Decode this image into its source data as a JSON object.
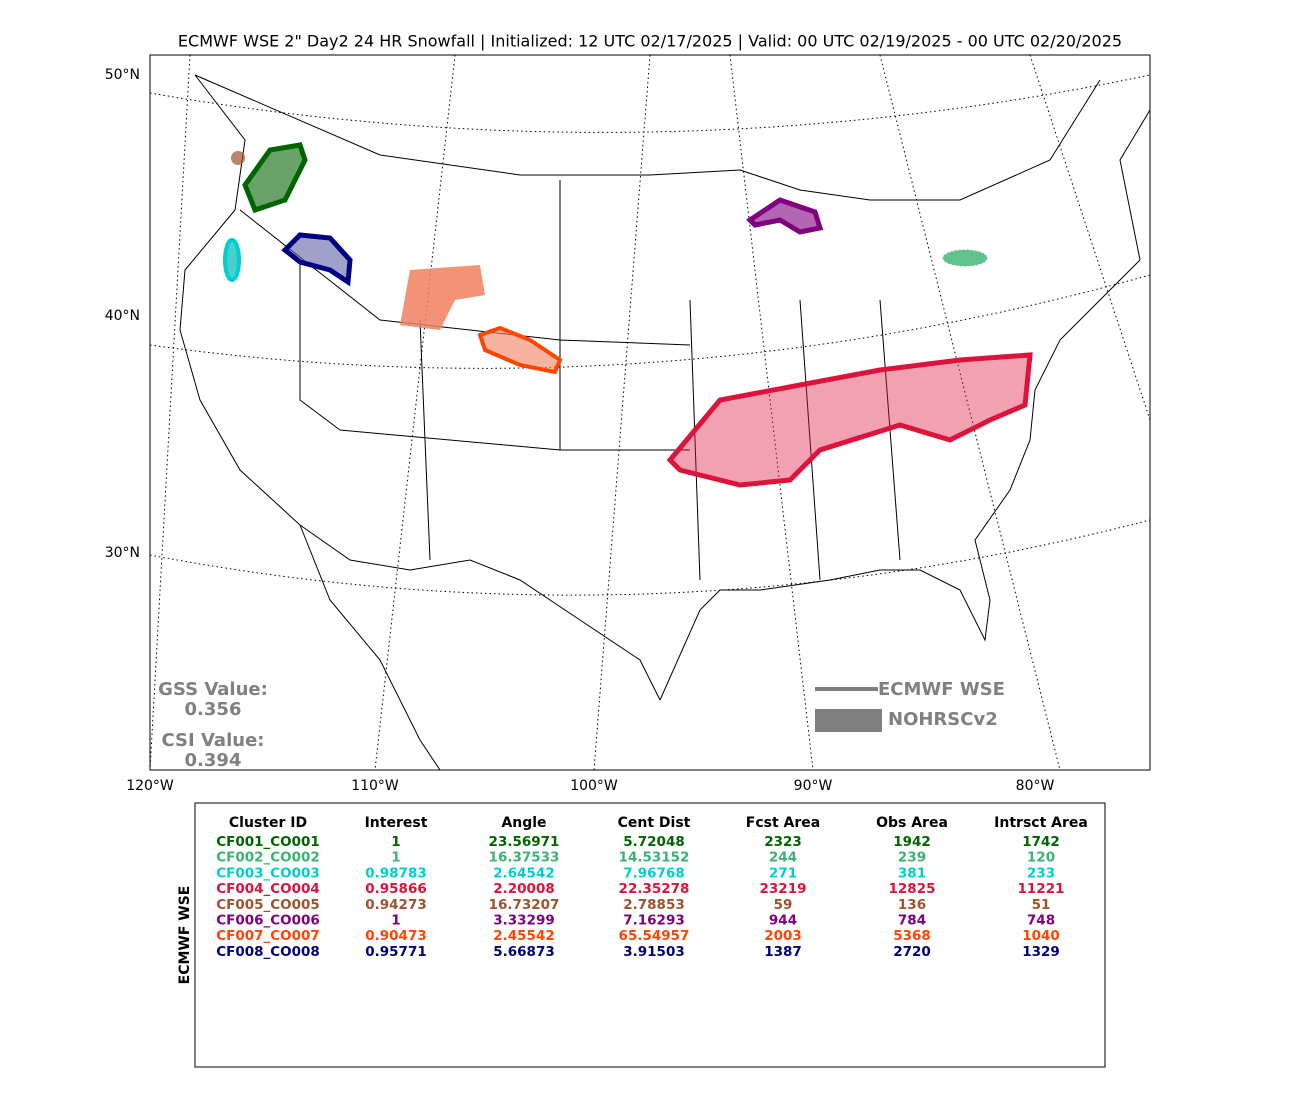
{
  "header": {
    "title": "ECMWF WSE 2\" Day2 24 HR Snowfall | Initialized: 12 UTC 02/17/2025 | Valid: 00 UTC 02/19/2025 - 00 UTC 02/20/2025"
  },
  "map": {
    "lat_labels": [
      "50°N",
      "40°N",
      "30°N"
    ],
    "lon_labels": [
      "120°W",
      "110°W",
      "100°W",
      "90°W",
      "80°W"
    ],
    "scores": {
      "gss_label": "GSS Value:",
      "gss_value": "0.356",
      "csi_label": "CSI Value:",
      "csi_value": "0.394"
    },
    "legend": {
      "forecast": "ECMWF WSE",
      "observed": "NOHRSCv2"
    }
  },
  "table": {
    "side_label": "ECMWF WSE",
    "headers": [
      "Cluster ID",
      "Interest",
      "Angle",
      "Cent Dist",
      "Fcst Area",
      "Obs Area",
      "Intrsct Area"
    ],
    "row_colors": [
      "#006400",
      "#3cb371",
      "#00ced1",
      "#dc143c",
      "#a0522d",
      "#800080",
      "#ff4500",
      "#000080"
    ],
    "rows": [
      [
        "CF001_CO001",
        "1",
        "23.56971",
        "5.72048",
        "2323",
        "1942",
        "1742"
      ],
      [
        "CF002_CO002",
        "1",
        "16.37533",
        "14.53152",
        "244",
        "239",
        "120"
      ],
      [
        "CF003_CO003",
        "0.98783",
        "2.64542",
        "7.96768",
        "271",
        "381",
        "233"
      ],
      [
        "CF004_CO004",
        "0.95866",
        "2.20008",
        "22.35278",
        "23219",
        "12825",
        "11221"
      ],
      [
        "CF005_CO005",
        "0.94273",
        "16.73207",
        "2.78853",
        "59",
        "136",
        "51"
      ],
      [
        "CF006_CO006",
        "1",
        "3.33299",
        "7.16293",
        "944",
        "784",
        "748"
      ],
      [
        "CF007_CO007",
        "0.90473",
        "2.45542",
        "65.54957",
        "2003",
        "5368",
        "1040"
      ],
      [
        "CF008_CO008",
        "0.95771",
        "5.66873",
        "3.91503",
        "1387",
        "2720",
        "1329"
      ]
    ]
  }
}
